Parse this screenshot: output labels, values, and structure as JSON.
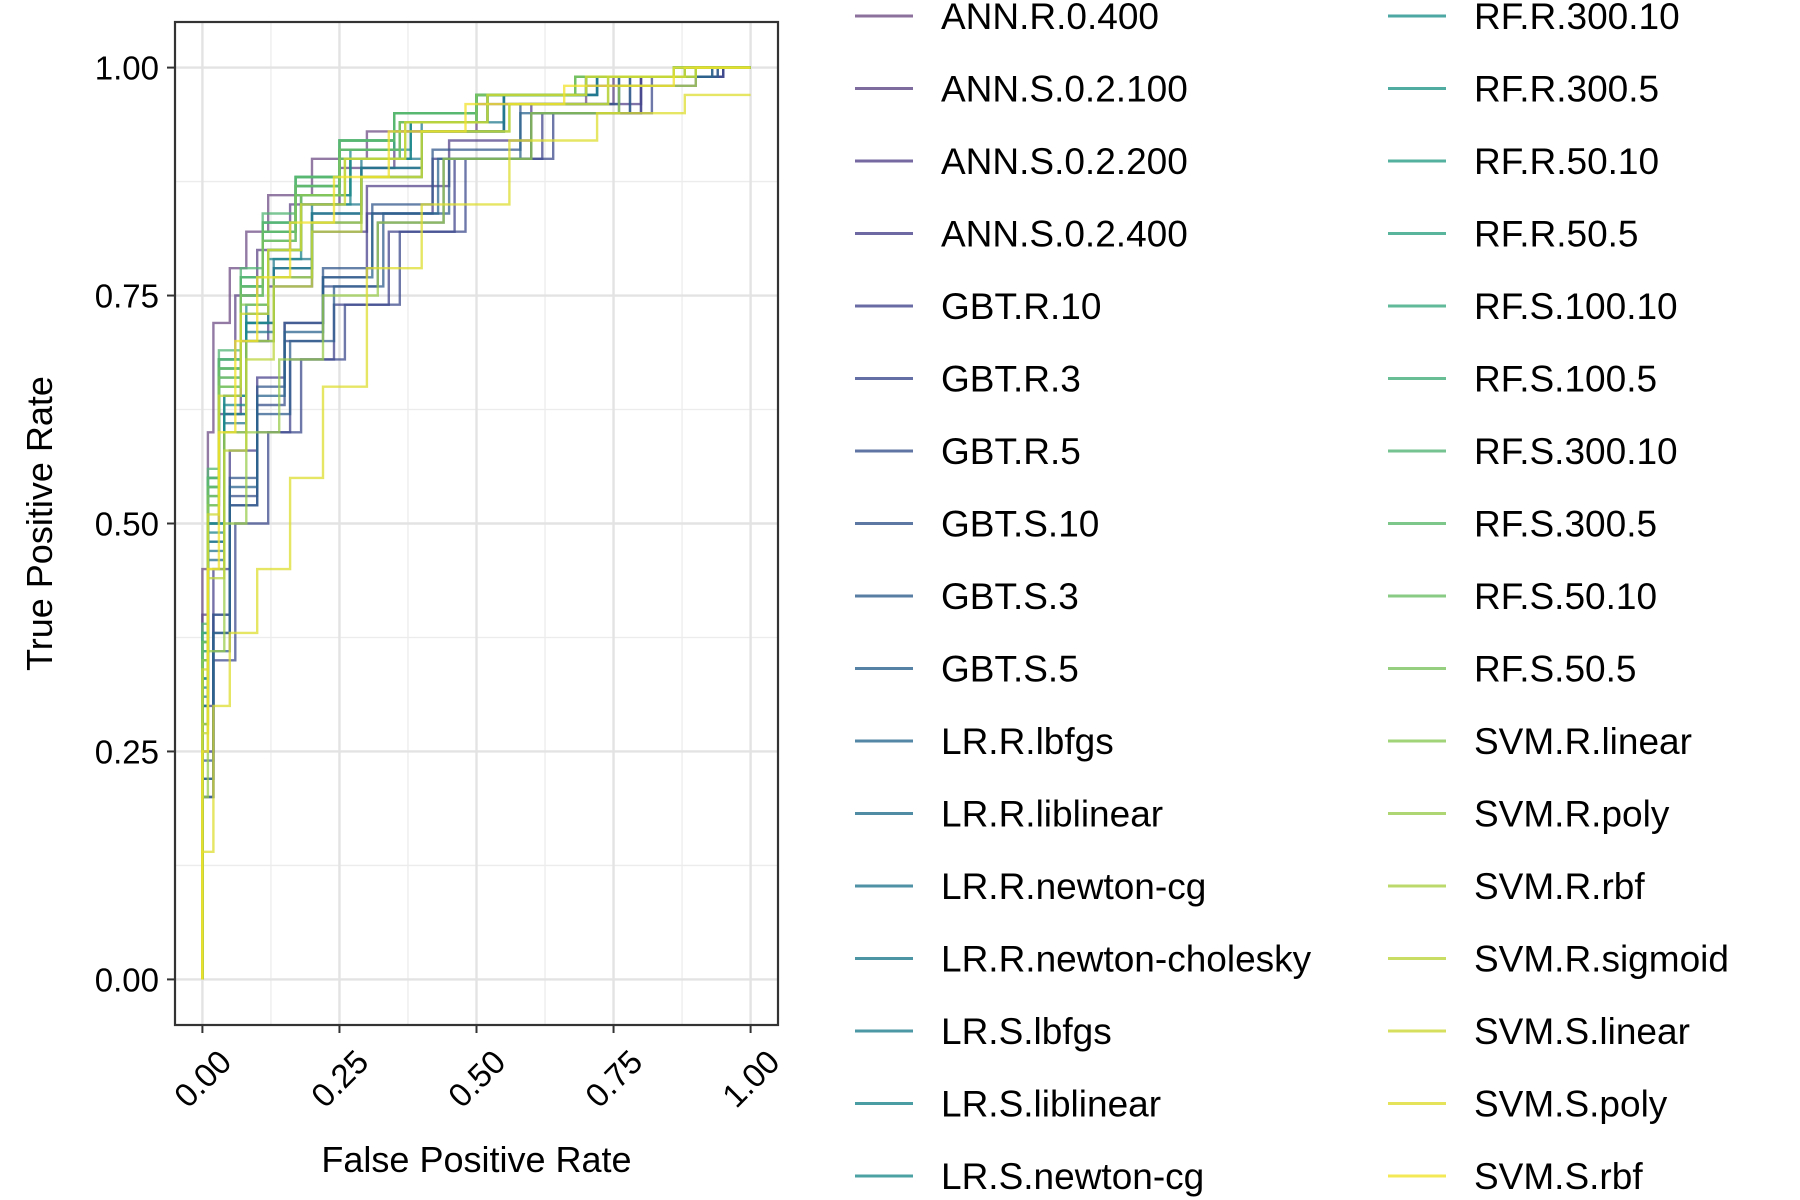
{
  "chart_data": {
    "type": "line",
    "title": "",
    "xlabel": "False Positive Rate",
    "ylabel": "True Positive Rate",
    "xlim": [
      -0.05,
      1.05
    ],
    "ylim": [
      -0.05,
      1.05
    ],
    "x_ticks": [
      0,
      0.25,
      0.5,
      0.75,
      1
    ],
    "x_tick_labels": [
      "0.00",
      "0.25",
      "0.50",
      "0.75",
      "1.00"
    ],
    "y_ticks": [
      0,
      0.25,
      0.5,
      0.75,
      1
    ],
    "y_tick_labels": [
      "0.00",
      "0.25",
      "0.50",
      "0.75",
      "1.00"
    ],
    "grid": true,
    "legend_position": "right",
    "legend_columns": 2,
    "series": [
      {
        "name": "ANN.R.0.400",
        "color": "#6f4d85",
        "x": [
          0,
          0.01,
          0.02,
          0.05,
          0.08,
          0.12,
          0.2,
          0.3,
          0.5,
          0.7,
          0.9,
          1
        ],
        "y": [
          0,
          0.45,
          0.6,
          0.72,
          0.78,
          0.82,
          0.86,
          0.9,
          0.93,
          0.96,
          0.98,
          1
        ]
      },
      {
        "name": "ANN.S.0.2.100",
        "color": "#5e4787",
        "x": [
          0,
          0.01,
          0.03,
          0.06,
          0.1,
          0.16,
          0.25,
          0.35,
          0.55,
          0.75,
          0.9,
          1
        ],
        "y": [
          0,
          0.4,
          0.55,
          0.68,
          0.75,
          0.8,
          0.85,
          0.89,
          0.93,
          0.96,
          0.99,
          1
        ]
      },
      {
        "name": "ANN.S.0.2.200",
        "color": "#54448a",
        "x": [
          0,
          0.01,
          0.03,
          0.07,
          0.12,
          0.2,
          0.3,
          0.45,
          0.6,
          0.8,
          0.95,
          1
        ],
        "y": [
          0,
          0.35,
          0.5,
          0.62,
          0.7,
          0.76,
          0.82,
          0.87,
          0.92,
          0.96,
          0.99,
          1
        ]
      },
      {
        "name": "ANN.S.0.2.400",
        "color": "#4a438c",
        "x": [
          0,
          0.02,
          0.05,
          0.1,
          0.15,
          0.22,
          0.3,
          0.42,
          0.6,
          0.8,
          0.95,
          1
        ],
        "y": [
          0,
          0.3,
          0.45,
          0.58,
          0.66,
          0.72,
          0.77,
          0.84,
          0.9,
          0.95,
          0.99,
          1
        ]
      },
      {
        "name": "GBT.R.10",
        "color": "#43478d",
        "x": [
          0,
          0.02,
          0.05,
          0.1,
          0.16,
          0.24,
          0.34,
          0.46,
          0.62,
          0.8,
          0.95,
          1
        ],
        "y": [
          0,
          0.25,
          0.4,
          0.52,
          0.6,
          0.68,
          0.74,
          0.82,
          0.9,
          0.95,
          0.99,
          1
        ]
      },
      {
        "name": "GBT.R.3",
        "color": "#3d4c8e",
        "x": [
          0,
          0.02,
          0.06,
          0.12,
          0.18,
          0.26,
          0.36,
          0.48,
          0.64,
          0.82,
          0.95,
          1
        ],
        "y": [
          0,
          0.2,
          0.35,
          0.5,
          0.6,
          0.68,
          0.74,
          0.82,
          0.9,
          0.95,
          0.99,
          1
        ]
      },
      {
        "name": "GBT.R.5",
        "color": "#38528c",
        "x": [
          0,
          0.02,
          0.05,
          0.1,
          0.15,
          0.22,
          0.32,
          0.44,
          0.6,
          0.78,
          0.94,
          1
        ],
        "y": [
          0,
          0.22,
          0.38,
          0.53,
          0.63,
          0.7,
          0.76,
          0.83,
          0.9,
          0.95,
          0.99,
          1
        ]
      },
      {
        "name": "GBT.S.10",
        "color": "#34588c",
        "x": [
          0,
          0.02,
          0.05,
          0.1,
          0.15,
          0.22,
          0.31,
          0.42,
          0.58,
          0.76,
          0.93,
          1
        ],
        "y": [
          0,
          0.24,
          0.4,
          0.55,
          0.65,
          0.72,
          0.78,
          0.85,
          0.91,
          0.96,
          0.99,
          1
        ]
      },
      {
        "name": "GBT.S.3",
        "color": "#305e8d",
        "x": [
          0,
          0.02,
          0.05,
          0.1,
          0.16,
          0.24,
          0.33,
          0.45,
          0.6,
          0.78,
          0.94,
          1
        ],
        "y": [
          0,
          0.2,
          0.36,
          0.52,
          0.62,
          0.7,
          0.76,
          0.84,
          0.9,
          0.95,
          0.99,
          1
        ]
      },
      {
        "name": "GBT.S.5",
        "color": "#2c648e",
        "x": [
          0,
          0.02,
          0.05,
          0.1,
          0.15,
          0.22,
          0.31,
          0.43,
          0.58,
          0.76,
          0.93,
          1
        ],
        "y": [
          0,
          0.22,
          0.38,
          0.54,
          0.64,
          0.71,
          0.77,
          0.84,
          0.9,
          0.95,
          0.99,
          1
        ]
      },
      {
        "name": "LR.R.lbfgs",
        "color": "#29698e",
        "x": [
          0,
          0.01,
          0.04,
          0.08,
          0.13,
          0.2,
          0.29,
          0.4,
          0.55,
          0.72,
          0.9,
          1
        ],
        "y": [
          0,
          0.3,
          0.48,
          0.62,
          0.72,
          0.78,
          0.84,
          0.89,
          0.93,
          0.97,
          0.99,
          1
        ]
      },
      {
        "name": "LR.R.liblinear",
        "color": "#266f8e",
        "x": [
          0,
          0.01,
          0.04,
          0.08,
          0.13,
          0.2,
          0.29,
          0.4,
          0.55,
          0.72,
          0.9,
          1
        ],
        "y": [
          0,
          0.28,
          0.46,
          0.6,
          0.7,
          0.77,
          0.83,
          0.88,
          0.93,
          0.97,
          0.99,
          1
        ]
      },
      {
        "name": "LR.R.newton-cg",
        "color": "#23758e",
        "x": [
          0,
          0.01,
          0.04,
          0.08,
          0.13,
          0.2,
          0.29,
          0.4,
          0.55,
          0.72,
          0.9,
          1
        ],
        "y": [
          0,
          0.3,
          0.47,
          0.61,
          0.71,
          0.78,
          0.84,
          0.89,
          0.93,
          0.97,
          0.99,
          1
        ]
      },
      {
        "name": "LR.R.newton-cholesky",
        "color": "#217a8e",
        "x": [
          0,
          0.01,
          0.04,
          0.08,
          0.13,
          0.2,
          0.29,
          0.4,
          0.55,
          0.72,
          0.9,
          1
        ],
        "y": [
          0,
          0.31,
          0.48,
          0.62,
          0.72,
          0.79,
          0.85,
          0.9,
          0.94,
          0.97,
          0.99,
          1
        ]
      },
      {
        "name": "LR.S.lbfgs",
        "color": "#1f808e",
        "x": [
          0,
          0.01,
          0.04,
          0.08,
          0.12,
          0.18,
          0.27,
          0.38,
          0.52,
          0.7,
          0.88,
          1
        ],
        "y": [
          0,
          0.33,
          0.5,
          0.64,
          0.73,
          0.8,
          0.86,
          0.9,
          0.94,
          0.97,
          0.99,
          1
        ]
      },
      {
        "name": "LR.S.liblinear",
        "color": "#1e858d",
        "x": [
          0,
          0.01,
          0.04,
          0.08,
          0.12,
          0.18,
          0.27,
          0.38,
          0.52,
          0.7,
          0.88,
          1
        ],
        "y": [
          0,
          0.32,
          0.49,
          0.63,
          0.72,
          0.79,
          0.85,
          0.9,
          0.94,
          0.97,
          0.99,
          1
        ]
      },
      {
        "name": "LR.S.newton-cg",
        "color": "#1f8b8c",
        "x": [
          0,
          0.01,
          0.04,
          0.08,
          0.12,
          0.18,
          0.27,
          0.38,
          0.52,
          0.7,
          0.88,
          1
        ],
        "y": [
          0,
          0.33,
          0.5,
          0.64,
          0.74,
          0.8,
          0.86,
          0.91,
          0.94,
          0.97,
          0.99,
          1
        ]
      },
      {
        "name": "RF.R.300.10",
        "color": "#21918c",
        "x": [
          0,
          0.01,
          0.03,
          0.07,
          0.11,
          0.17,
          0.25,
          0.35,
          0.5,
          0.68,
          0.86,
          1
        ],
        "y": [
          0,
          0.38,
          0.55,
          0.68,
          0.77,
          0.83,
          0.88,
          0.92,
          0.95,
          0.97,
          0.99,
          1
        ]
      },
      {
        "name": "RF.R.300.5",
        "color": "#24978a",
        "x": [
          0,
          0.01,
          0.03,
          0.07,
          0.11,
          0.17,
          0.25,
          0.35,
          0.5,
          0.68,
          0.86,
          1
        ],
        "y": [
          0,
          0.36,
          0.53,
          0.66,
          0.76,
          0.82,
          0.87,
          0.91,
          0.95,
          0.97,
          0.99,
          1
        ]
      },
      {
        "name": "RF.R.50.10",
        "color": "#2a9d87",
        "x": [
          0,
          0.01,
          0.03,
          0.07,
          0.11,
          0.17,
          0.25,
          0.36,
          0.5,
          0.68,
          0.86,
          1
        ],
        "y": [
          0,
          0.37,
          0.54,
          0.67,
          0.76,
          0.82,
          0.87,
          0.91,
          0.94,
          0.97,
          0.99,
          1
        ]
      },
      {
        "name": "RF.R.50.5",
        "color": "#31a384",
        "x": [
          0,
          0.01,
          0.03,
          0.07,
          0.11,
          0.17,
          0.25,
          0.36,
          0.5,
          0.68,
          0.86,
          1
        ],
        "y": [
          0,
          0.35,
          0.52,
          0.65,
          0.75,
          0.81,
          0.86,
          0.9,
          0.94,
          0.97,
          0.99,
          1
        ]
      },
      {
        "name": "RF.S.100.10",
        "color": "#3aa97f",
        "x": [
          0,
          0.01,
          0.03,
          0.07,
          0.11,
          0.17,
          0.25,
          0.35,
          0.5,
          0.68,
          0.86,
          1
        ],
        "y": [
          0,
          0.38,
          0.55,
          0.68,
          0.77,
          0.83,
          0.88,
          0.92,
          0.95,
          0.97,
          0.99,
          1
        ]
      },
      {
        "name": "RF.S.100.5",
        "color": "#45ae7a",
        "x": [
          0,
          0.01,
          0.03,
          0.07,
          0.11,
          0.17,
          0.25,
          0.35,
          0.5,
          0.68,
          0.86,
          1
        ],
        "y": [
          0,
          0.36,
          0.54,
          0.67,
          0.76,
          0.82,
          0.87,
          0.91,
          0.95,
          0.97,
          0.99,
          1
        ]
      },
      {
        "name": "RF.S.300.10",
        "color": "#51b474",
        "x": [
          0,
          0.01,
          0.03,
          0.07,
          0.11,
          0.17,
          0.25,
          0.35,
          0.5,
          0.68,
          0.86,
          1
        ],
        "y": [
          0,
          0.39,
          0.56,
          0.69,
          0.78,
          0.84,
          0.88,
          0.92,
          0.95,
          0.97,
          0.99,
          1
        ]
      },
      {
        "name": "RF.S.300.5",
        "color": "#5eb96e",
        "x": [
          0,
          0.01,
          0.03,
          0.07,
          0.11,
          0.17,
          0.25,
          0.35,
          0.5,
          0.68,
          0.86,
          1
        ],
        "y": [
          0,
          0.37,
          0.55,
          0.68,
          0.77,
          0.83,
          0.88,
          0.92,
          0.95,
          0.97,
          0.99,
          1
        ]
      },
      {
        "name": "RF.S.50.10",
        "color": "#6cbe67",
        "x": [
          0,
          0.01,
          0.03,
          0.07,
          0.11,
          0.17,
          0.25,
          0.36,
          0.5,
          0.68,
          0.86,
          1
        ],
        "y": [
          0,
          0.37,
          0.54,
          0.67,
          0.76,
          0.82,
          0.87,
          0.91,
          0.94,
          0.97,
          0.99,
          1
        ]
      },
      {
        "name": "RF.S.50.5",
        "color": "#7bc35f",
        "x": [
          0,
          0.01,
          0.03,
          0.07,
          0.11,
          0.17,
          0.25,
          0.36,
          0.5,
          0.68,
          0.86,
          1
        ],
        "y": [
          0,
          0.35,
          0.53,
          0.66,
          0.75,
          0.81,
          0.86,
          0.9,
          0.94,
          0.97,
          0.99,
          1
        ]
      },
      {
        "name": "SVM.R.linear",
        "color": "#8ac857",
        "x": [
          0,
          0.01,
          0.03,
          0.07,
          0.12,
          0.18,
          0.26,
          0.37,
          0.52,
          0.7,
          0.88,
          1
        ],
        "y": [
          0,
          0.35,
          0.52,
          0.65,
          0.74,
          0.8,
          0.86,
          0.9,
          0.94,
          0.97,
          0.99,
          1
        ]
      },
      {
        "name": "SVM.R.poly",
        "color": "#9acc4f",
        "x": [
          0,
          0.01,
          0.04,
          0.08,
          0.14,
          0.22,
          0.32,
          0.44,
          0.6,
          0.76,
          0.9,
          1
        ],
        "y": [
          0,
          0.2,
          0.36,
          0.5,
          0.6,
          0.68,
          0.75,
          0.83,
          0.9,
          0.95,
          0.98,
          1
        ]
      },
      {
        "name": "SVM.R.rbf",
        "color": "#abd046",
        "x": [
          0,
          0.01,
          0.04,
          0.08,
          0.13,
          0.2,
          0.29,
          0.4,
          0.56,
          0.74,
          0.9,
          1
        ],
        "y": [
          0,
          0.28,
          0.45,
          0.6,
          0.7,
          0.77,
          0.83,
          0.88,
          0.93,
          0.96,
          0.99,
          1
        ]
      },
      {
        "name": "SVM.R.sigmoid",
        "color": "#bcd43e",
        "x": [
          0,
          0.01,
          0.04,
          0.08,
          0.13,
          0.2,
          0.29,
          0.4,
          0.56,
          0.74,
          0.9,
          1
        ],
        "y": [
          0,
          0.27,
          0.44,
          0.58,
          0.68,
          0.76,
          0.82,
          0.88,
          0.93,
          0.96,
          0.99,
          1
        ]
      },
      {
        "name": "SVM.S.linear",
        "color": "#cdd836",
        "x": [
          0,
          0.01,
          0.03,
          0.07,
          0.12,
          0.18,
          0.26,
          0.37,
          0.52,
          0.7,
          0.88,
          1
        ],
        "y": [
          0,
          0.34,
          0.51,
          0.64,
          0.73,
          0.8,
          0.85,
          0.9,
          0.94,
          0.97,
          0.99,
          1
        ]
      },
      {
        "name": "SVM.S.poly",
        "color": "#dedc30",
        "x": [
          0,
          0.02,
          0.05,
          0.1,
          0.16,
          0.22,
          0.3,
          0.4,
          0.56,
          0.72,
          0.88,
          1
        ],
        "y": [
          0,
          0.14,
          0.3,
          0.38,
          0.45,
          0.55,
          0.65,
          0.78,
          0.85,
          0.92,
          0.95,
          0.97
        ]
      },
      {
        "name": "SVM.S.rbf",
        "color": "#f0e22c",
        "x": [
          0,
          0.01,
          0.03,
          0.06,
          0.1,
          0.16,
          0.24,
          0.34,
          0.48,
          0.66,
          0.86,
          1
        ],
        "y": [
          0,
          0.25,
          0.45,
          0.6,
          0.7,
          0.77,
          0.83,
          0.88,
          0.93,
          0.96,
          0.98,
          1
        ]
      }
    ]
  }
}
